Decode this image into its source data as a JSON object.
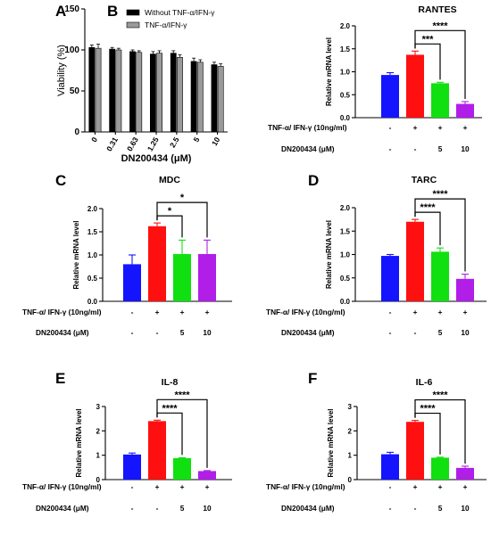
{
  "chart_data": [
    {
      "id": "A",
      "type": "bar",
      "panel_label": "A",
      "title": "",
      "ylabel": "Viability (%)",
      "xlabel": "DN200434 (μM)",
      "categories": [
        "0",
        "0.31",
        "0.63",
        "1.25",
        "2.5",
        "5",
        "10"
      ],
      "ylim": [
        0,
        150
      ],
      "yticks": [
        "0",
        "50",
        "100",
        "150"
      ],
      "series": [
        {
          "name": "Without TNF-α/IFN-γ",
          "color": "#000000",
          "values": [
            103,
            101,
            98,
            95,
            96,
            86,
            82
          ],
          "errors": [
            3,
            2,
            2,
            3,
            3,
            4,
            3
          ]
        },
        {
          "name": "TNF-α/IFN-γ",
          "color": "#9a9a9a",
          "values": [
            102,
            100,
            97,
            96,
            91,
            85,
            80
          ],
          "errors": [
            5,
            2,
            2,
            3,
            3,
            3,
            3
          ]
        }
      ],
      "legend_position": "top-right"
    },
    {
      "id": "B",
      "type": "bar",
      "panel_label": "B",
      "title": "RANTES",
      "ylabel": "Relative mRNA level",
      "ylim": [
        0,
        2.0
      ],
      "yticks": [
        "0.0",
        "0.5",
        "1.0",
        "1.5",
        "2.0"
      ],
      "values": [
        0.93,
        1.37,
        0.75,
        0.3
      ],
      "errors": [
        0.05,
        0.08,
        0.02,
        0.05
      ],
      "colors": [
        "#1414ff",
        "#ff1010",
        "#10e010",
        "#b01ee8"
      ],
      "brackets": [
        {
          "from": 1,
          "to": 2,
          "label": "***"
        },
        {
          "from": 1,
          "to": 3,
          "label": "****"
        }
      ],
      "rows": [
        {
          "label": "TNF-α/ IFN-γ  (10ng/ml)",
          "values": [
            "-",
            "+",
            "+",
            "+"
          ]
        },
        {
          "label": "DN200434  (μM)",
          "values": [
            "-",
            "-",
            "5",
            "10"
          ]
        }
      ]
    },
    {
      "id": "C",
      "type": "bar",
      "panel_label": "C",
      "title": "MDC",
      "ylabel": "Relative mRNA level",
      "ylim": [
        0,
        2.0
      ],
      "yticks": [
        "0.0",
        "0.5",
        "1.0",
        "1.5",
        "2.0"
      ],
      "values": [
        0.8,
        1.62,
        1.02,
        1.02
      ],
      "errors": [
        0.2,
        0.07,
        0.3,
        0.3
      ],
      "colors": [
        "#1414ff",
        "#ff1010",
        "#10e010",
        "#b01ee8"
      ],
      "brackets": [
        {
          "from": 1,
          "to": 2,
          "label": "*"
        },
        {
          "from": 1,
          "to": 3,
          "label": "*"
        }
      ],
      "rows": [
        {
          "label": "TNF-α/ IFN-γ  (10ng/ml)",
          "values": [
            "-",
            "+",
            "+",
            "+"
          ]
        },
        {
          "label": "DN200434  (μM)",
          "values": [
            "-",
            "-",
            "5",
            "10"
          ]
        }
      ]
    },
    {
      "id": "D",
      "type": "bar",
      "panel_label": "D",
      "title": "TARC",
      "ylabel": "Relative mRNA level",
      "ylim": [
        0,
        2.0
      ],
      "yticks": [
        "0.0",
        "0.5",
        "1.0",
        "1.5",
        "2.0"
      ],
      "values": [
        0.97,
        1.7,
        1.06,
        0.48
      ],
      "errors": [
        0.03,
        0.05,
        0.08,
        0.1
      ],
      "colors": [
        "#1414ff",
        "#ff1010",
        "#10e010",
        "#b01ee8"
      ],
      "brackets": [
        {
          "from": 1,
          "to": 2,
          "label": "****"
        },
        {
          "from": 1,
          "to": 3,
          "label": "****"
        }
      ],
      "rows": [
        {
          "label": "TNF-α/ IFN-γ  (10ng/ml)",
          "values": [
            "-",
            "+",
            "+",
            "+"
          ]
        },
        {
          "label": "DN200434  (μM)",
          "values": [
            "-",
            "-",
            "5",
            "10"
          ]
        }
      ]
    },
    {
      "id": "E",
      "type": "bar",
      "panel_label": "E",
      "title": "IL-8",
      "ylabel": "Relative mRNA level",
      "ylim": [
        0,
        3
      ],
      "yticks": [
        "0",
        "1",
        "2",
        "3"
      ],
      "values": [
        1.03,
        2.4,
        0.88,
        0.35
      ],
      "errors": [
        0.06,
        0.04,
        0.02,
        0.02
      ],
      "colors": [
        "#1414ff",
        "#ff1010",
        "#10e010",
        "#b01ee8"
      ],
      "brackets": [
        {
          "from": 1,
          "to": 2,
          "label": "****"
        },
        {
          "from": 1,
          "to": 3,
          "label": "****"
        }
      ],
      "rows": [
        {
          "label": "TNF-α/ IFN-γ  (10ng/ml)",
          "values": [
            "-",
            "+",
            "+",
            "+"
          ]
        },
        {
          "label": "DN200434  (μM)",
          "values": [
            "-",
            "-",
            "5",
            "10"
          ]
        }
      ]
    },
    {
      "id": "F",
      "type": "bar",
      "panel_label": "F",
      "title": "IL-6",
      "ylabel": "Relative mRNA level",
      "ylim": [
        0,
        3
      ],
      "yticks": [
        "0",
        "1",
        "2",
        "3"
      ],
      "values": [
        1.04,
        2.37,
        0.9,
        0.48
      ],
      "errors": [
        0.08,
        0.06,
        0.02,
        0.07
      ],
      "colors": [
        "#1414ff",
        "#ff1010",
        "#10e010",
        "#b01ee8"
      ],
      "brackets": [
        {
          "from": 1,
          "to": 2,
          "label": "****"
        },
        {
          "from": 1,
          "to": 3,
          "label": "****"
        }
      ],
      "rows": [
        {
          "label": "TNF-α/ IFN-γ  (10ng/ml)",
          "values": [
            "-",
            "+",
            "+",
            "+"
          ]
        },
        {
          "label": "DN200434  (μM)",
          "values": [
            "-",
            "-",
            "5",
            "10"
          ]
        }
      ]
    }
  ]
}
